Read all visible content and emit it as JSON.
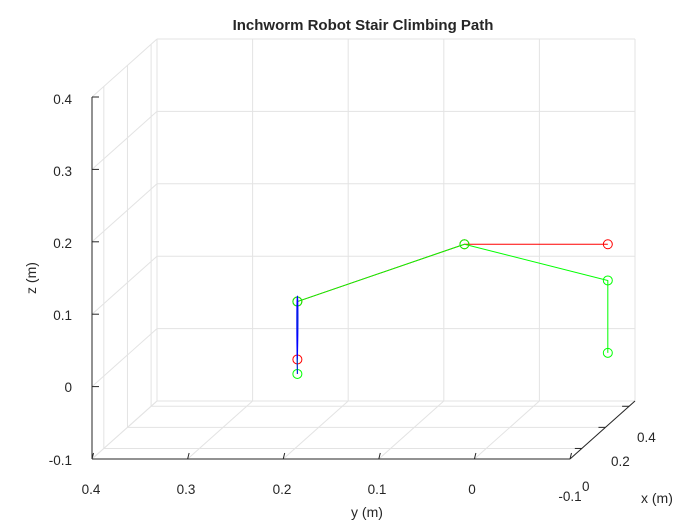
{
  "chart_data": {
    "type": "line3d",
    "title": "Inchworm Robot Stair Climbing Path",
    "xlabel": "x (m)",
    "ylabel": "y (m)",
    "zlabel": "z (m)",
    "xlim": [
      -0.1,
      0.45
    ],
    "ylim": [
      -0.1,
      0.4
    ],
    "zlim": [
      -0.1,
      0.4
    ],
    "x_ticks": [
      "0",
      "0.2",
      "0.4"
    ],
    "y_ticks": [
      "0.4",
      "0.3",
      "0.2",
      "0.1",
      "0",
      "-0.1"
    ],
    "z_ticks": [
      "-0.1",
      "0",
      "0.1",
      "0.2",
      "0.3",
      "0.4"
    ],
    "grid": true,
    "series": [
      {
        "color": "#ff0000",
        "marker": "circle",
        "points": [
          [
            0.02,
            0.2,
            0.02
          ],
          [
            0.02,
            0.2,
            0.1
          ],
          [
            0.22,
            0.05,
            0.15
          ],
          [
            0.22,
            -0.1,
            0.15
          ]
        ]
      },
      {
        "color": "#00ff00",
        "marker": "circle",
        "points": [
          [
            0.02,
            0.2,
            0.0
          ],
          [
            0.02,
            0.2,
            0.1
          ],
          [
            0.22,
            0.05,
            0.15
          ],
          [
            0.22,
            -0.1,
            0.1
          ],
          [
            0.22,
            -0.1,
            0.0
          ]
        ]
      },
      {
        "color": "#0000ff",
        "marker": "none",
        "points": [
          [
            0.02,
            0.2,
            0.02
          ],
          [
            0.02,
            0.2,
            0.075
          ],
          [
            0.02,
            0.2,
            0.0
          ]
        ]
      }
    ]
  }
}
